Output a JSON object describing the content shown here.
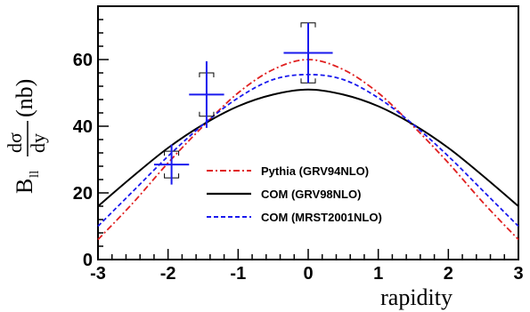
{
  "chart_data": {
    "type": "line",
    "title": "",
    "xlabel": "rapidity",
    "ylabel_main": "B",
    "ylabel_sub": "ll",
    "ylabel_frac_num": "dσ",
    "ylabel_frac_den": "dy",
    "ylabel_unit": "(nb)",
    "xlim": [
      -3,
      3
    ],
    "ylim": [
      0,
      76
    ],
    "x_ticks": [
      "-3",
      "-2",
      "-1",
      "0",
      "1",
      "2",
      "3"
    ],
    "y_ticks": [
      "0",
      "20",
      "40",
      "60"
    ],
    "grid": false,
    "legend_position": "center-bottom",
    "series": [
      {
        "name": "Pythia (GRV94NLO)",
        "color": "#e02020",
        "dash": "dash-dot",
        "x": [
          -3,
          -2.5,
          -2,
          -1.5,
          -1,
          -0.5,
          0,
          0.5,
          1,
          1.5,
          2,
          2.5,
          3
        ],
        "y": [
          6,
          17,
          29,
          40,
          50,
          57,
          60,
          57,
          50,
          40,
          29,
          17,
          6
        ]
      },
      {
        "name": "COM (GRV98NLO)",
        "color": "#000000",
        "dash": "solid",
        "x": [
          -3,
          -2.5,
          -2,
          -1.5,
          -1,
          -0.5,
          0,
          0.5,
          1,
          1.5,
          2,
          2.5,
          3
        ],
        "y": [
          16,
          25,
          33.5,
          40.5,
          46,
          49.5,
          51,
          49.5,
          46,
          40.5,
          33.5,
          25,
          16
        ]
      },
      {
        "name": "COM (MRST2001NLO)",
        "color": "#1a1aee",
        "dash": "dashed",
        "x": [
          -3,
          -2.5,
          -2,
          -1.5,
          -1,
          -0.5,
          0,
          0.5,
          1,
          1.5,
          2,
          2.5,
          3
        ],
        "y": [
          10,
          20.5,
          31,
          40.5,
          48.5,
          54,
          55.5,
          54,
          48.5,
          40.5,
          31,
          20.5,
          10
        ]
      }
    ],
    "data_points": [
      {
        "x": -1.95,
        "y": 28.5,
        "xerr": 0.25,
        "yerr_stat": 6,
        "sys_lo": 24.5,
        "sys_hi": 32.5
      },
      {
        "x": -1.45,
        "y": 49.5,
        "xerr": 0.25,
        "yerr_stat": 10,
        "sys_lo": 43,
        "sys_hi": 56
      },
      {
        "x": 0.0,
        "y": 62,
        "xerr": 0.35,
        "yerr_stat": 9,
        "sys_lo": 53,
        "sys_hi": 71
      }
    ],
    "point_color": "#1a1aee",
    "sys_color": "#000000"
  }
}
